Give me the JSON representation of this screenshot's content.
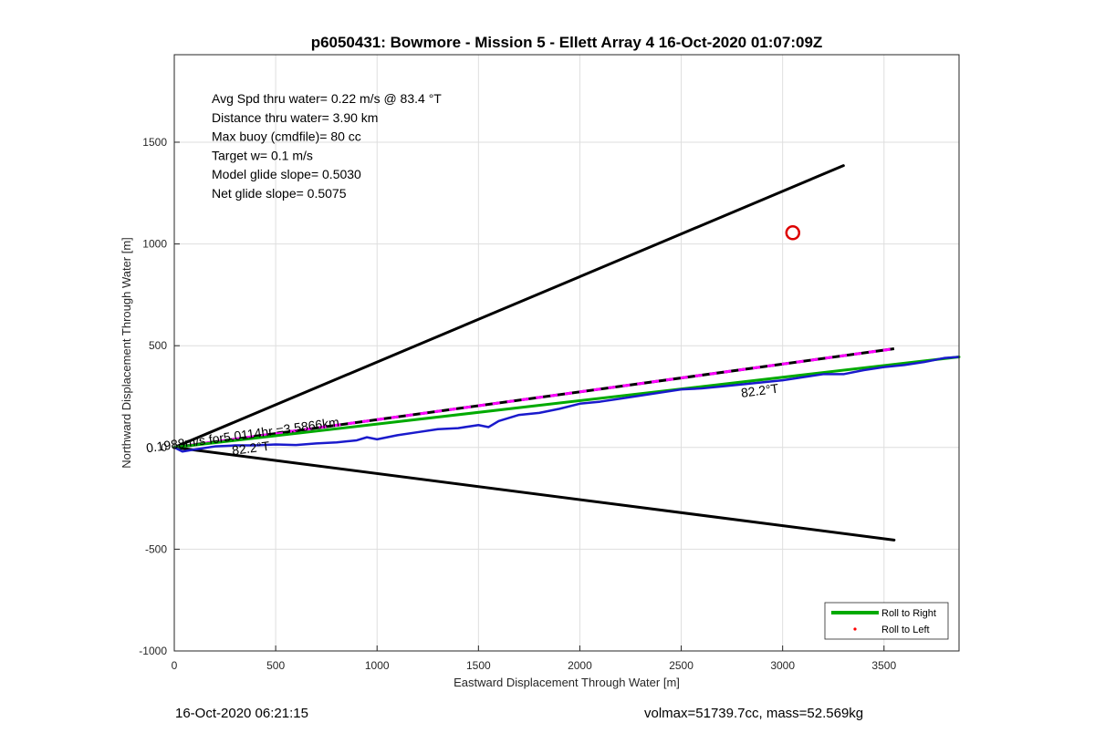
{
  "footer": {
    "timestamp": "16-Oct-2020 06:21:15",
    "vol_mass": "volmax=51739.7cc, mass=52.569kg"
  },
  "chart_data": {
    "type": "line",
    "title": "p6050431: Bowmore - Mission 5 - Ellett Array 4 16-Oct-2020 01:07:09Z",
    "xlabel": "Eastward Displacement Through Water [m]",
    "ylabel": "Northward Displacement Through Water [m]",
    "xlim": [
      0,
      3870
    ],
    "ylim": [
      -1000,
      1000
    ],
    "yview_max": 1930,
    "xticks": [
      0,
      500,
      1000,
      1500,
      2000,
      2500,
      3000,
      3500
    ],
    "yticks": [
      -1000,
      -500,
      0,
      500,
      1000,
      1500
    ],
    "grid": true,
    "legend_position": "bottom-right",
    "legend": [
      {
        "label": "Roll to Right",
        "color": "#00aa00",
        "kind": "line"
      },
      {
        "label": "Roll to Left",
        "color": "#ff0000",
        "kind": "dot"
      }
    ],
    "info_lines": [
      "Avg Spd thru water=  0.22 m/s @  83.4 °T",
      "Distance thru water=  3.90 km",
      "Max buoy (cmdfile)= 80 cc",
      "Target w= 0.1 m/s",
      "Model glide slope= 0.5030",
      "Net glide slope= 0.5075"
    ],
    "annotations": [
      {
        "text": "0.1988m/s for5.0114hr =3.5866km",
        "x": 340,
        "y": 40,
        "angle": -7.8
      },
      {
        "text": "82.2°T",
        "x": 380,
        "y": -25,
        "angle": -7.5
      },
      {
        "text": "82.2°T",
        "x": 2890,
        "y": 258,
        "angle": -7.5
      }
    ],
    "series": [
      {
        "name": "",
        "kind": "line",
        "color": "#000000",
        "x": [
          0,
          3300
        ],
        "y": [
          0,
          1385
        ]
      },
      {
        "name": "",
        "kind": "line",
        "color": "#000000",
        "x": [
          0,
          3550
        ],
        "y": [
          0,
          -455
        ]
      },
      {
        "name": "",
        "kind": "dashed",
        "color": "#000000",
        "dash_color": "#ff00ff",
        "x": [
          0,
          3550
        ],
        "y": [
          0,
          485
        ]
      },
      {
        "name": "Roll to Right",
        "kind": "line",
        "color": "#00aa00",
        "x": [
          0,
          3870
        ],
        "y": [
          0,
          445
        ]
      },
      {
        "name": "",
        "kind": "track",
        "color": "#1a1acc",
        "x": [
          0,
          40,
          100,
          200,
          300,
          400,
          500,
          600,
          700,
          800,
          900,
          950,
          1000,
          1100,
          1200,
          1300,
          1400,
          1500,
          1550,
          1600,
          1700,
          1800,
          1900,
          2000,
          2100,
          2200,
          2300,
          2400,
          2500,
          2600,
          2700,
          2800,
          2900,
          3000,
          3100,
          3200,
          3300,
          3400,
          3500,
          3600,
          3700,
          3800,
          3870
        ],
        "y": [
          0,
          -20,
          -10,
          5,
          10,
          10,
          15,
          12,
          20,
          25,
          35,
          50,
          40,
          60,
          75,
          90,
          95,
          110,
          100,
          130,
          160,
          170,
          190,
          215,
          225,
          240,
          255,
          270,
          285,
          290,
          300,
          310,
          320,
          330,
          345,
          360,
          360,
          380,
          395,
          405,
          420,
          440,
          445
        ]
      },
      {
        "name": "",
        "kind": "circle",
        "color": "#dd0000",
        "x": [
          3050
        ],
        "y": [
          1055
        ]
      }
    ]
  }
}
